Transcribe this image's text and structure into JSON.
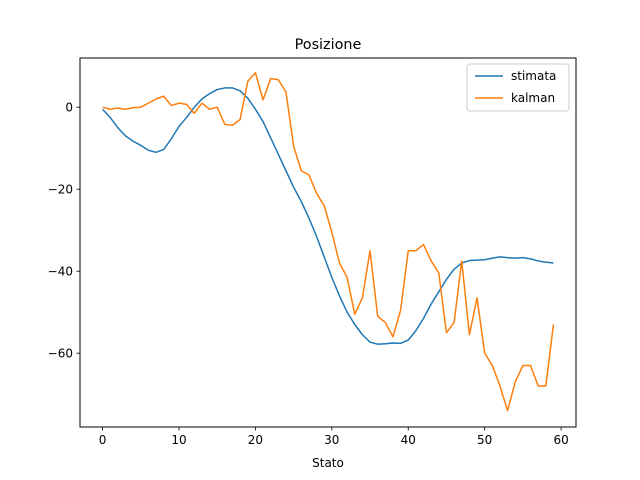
{
  "chart_data": {
    "type": "line",
    "title": "Posizione",
    "xlabel": "Stato",
    "ylabel": "",
    "xlim": [
      -2.95,
      61.95
    ],
    "ylim": [
      -78.0,
      12.0
    ],
    "xticks": [
      0,
      10,
      20,
      30,
      40,
      50,
      60
    ],
    "yticks": [
      -60,
      -40,
      -20,
      0
    ],
    "grid": false,
    "legend_position": "top-right",
    "x": [
      0,
      1,
      2,
      3,
      4,
      5,
      6,
      7,
      8,
      9,
      10,
      11,
      12,
      13,
      14,
      15,
      16,
      17,
      18,
      19,
      20,
      21,
      22,
      23,
      24,
      25,
      26,
      27,
      28,
      29,
      30,
      31,
      32,
      33,
      34,
      35,
      36,
      37,
      38,
      39,
      40,
      41,
      42,
      43,
      44,
      45,
      46,
      47,
      48,
      49,
      50,
      51,
      52,
      53,
      54,
      55,
      56,
      57,
      58,
      59
    ],
    "series": [
      {
        "name": "stimata",
        "color": "#1f77b4",
        "values": [
          -0.5,
          -2.5,
          -5.0,
          -7.0,
          -8.3,
          -9.3,
          -10.5,
          -11.0,
          -10.3,
          -7.7,
          -4.7,
          -2.5,
          0.0,
          2.0,
          3.3,
          4.3,
          4.7,
          4.7,
          4.0,
          2.2,
          -0.5,
          -3.5,
          -7.5,
          -11.5,
          -15.5,
          -19.5,
          -23.0,
          -27.0,
          -31.5,
          -36.5,
          -41.5,
          -46.0,
          -50.0,
          -53.0,
          -55.5,
          -57.3,
          -57.8,
          -57.7,
          -57.5,
          -57.6,
          -56.8,
          -54.5,
          -51.5,
          -48.0,
          -45.0,
          -42.0,
          -39.5,
          -38.0,
          -37.4,
          -37.3,
          -37.2,
          -36.8,
          -36.5,
          -36.7,
          -36.8,
          -36.7,
          -37.0,
          -37.5,
          -37.8,
          -38.0
        ]
      },
      {
        "name": "kalman",
        "color": "#ff7f0e",
        "values": [
          0.0,
          -0.5,
          -0.2,
          -0.5,
          -0.1,
          0.0,
          1.0,
          2.0,
          2.7,
          0.4,
          1.0,
          0.7,
          -1.5,
          1.0,
          -0.5,
          0.0,
          -4.2,
          -4.4,
          -3.0,
          6.3,
          8.4,
          1.8,
          7.0,
          6.7,
          3.7,
          -9.5,
          -15.5,
          -16.5,
          -21.0,
          -24.0,
          -30.5,
          -38.0,
          -41.5,
          -50.5,
          -46.5,
          -35.0,
          -51.0,
          -52.5,
          -56.0,
          -49.5,
          -35.0,
          -35.0,
          -33.5,
          -37.5,
          -40.5,
          -55.0,
          -52.5,
          -37.5,
          -55.5,
          -46.5,
          -60.0,
          -63.0,
          -68.0,
          -74.0,
          -67.0,
          -63.0,
          -63.0,
          -68.0,
          -68.0,
          -53.0
        ]
      }
    ]
  }
}
